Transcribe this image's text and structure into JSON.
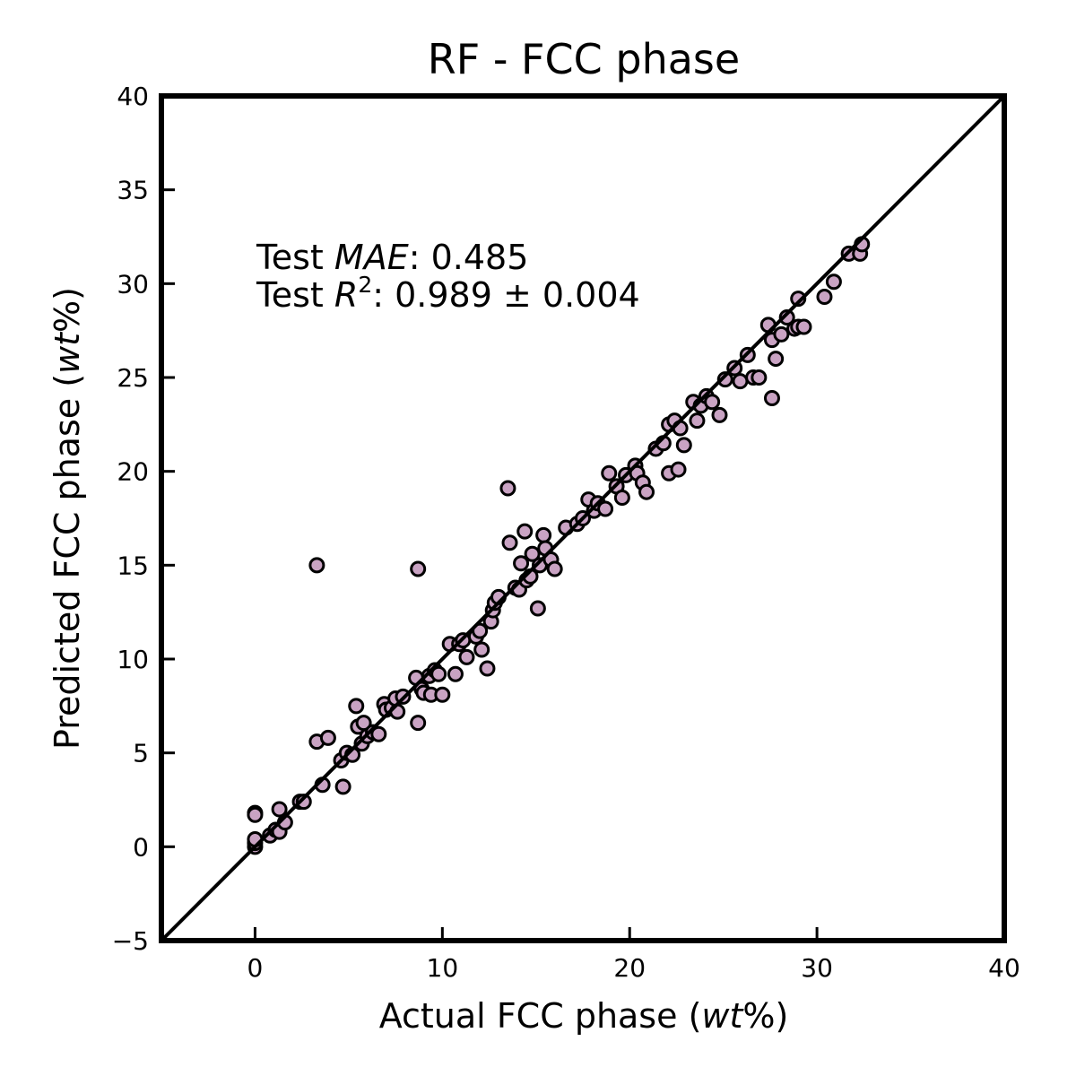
{
  "chart_data": {
    "type": "scatter",
    "title": "RF - FCC phase",
    "xlabel_prefix": "Actual FCC phase (",
    "ylabel_prefix": "Predicted FCC phase (",
    "unit": "wt",
    "unit_suffix": "%)",
    "xlim": [
      -5,
      40
    ],
    "ylim": [
      -5,
      40
    ],
    "x_ticks": [
      0,
      10,
      20,
      30,
      40
    ],
    "y_ticks": [
      -5,
      0,
      5,
      10,
      15,
      20,
      25,
      30,
      35,
      40
    ],
    "identity_line": true,
    "grid": false,
    "annotation": {
      "mae_prefix": "Test ",
      "mae_name": "MAE",
      "mae_value": ": 0.485",
      "r2_prefix": "Test ",
      "r2_name": "R",
      "r2_sup": "2",
      "r2_value": ": 0.989 ± 0.004"
    },
    "marker_color": "#c9a3c3",
    "points": [
      [
        0,
        0
      ],
      [
        0,
        0.2
      ],
      [
        0,
        0.4
      ],
      [
        0,
        1.8
      ],
      [
        0,
        1.7
      ],
      [
        0.8,
        0.6
      ],
      [
        1.1,
        0.9
      ],
      [
        1.3,
        0.8
      ],
      [
        1.3,
        2.0
      ],
      [
        1.6,
        1.3
      ],
      [
        2.4,
        2.4
      ],
      [
        2.6,
        2.4
      ],
      [
        3.3,
        15.0
      ],
      [
        3.3,
        5.6
      ],
      [
        3.6,
        3.3
      ],
      [
        3.9,
        5.8
      ],
      [
        4.6,
        4.6
      ],
      [
        4.7,
        3.2
      ],
      [
        4.9,
        5.0
      ],
      [
        5.2,
        4.9
      ],
      [
        5.4,
        7.5
      ],
      [
        5.5,
        6.4
      ],
      [
        5.7,
        5.5
      ],
      [
        5.8,
        6.6
      ],
      [
        6.0,
        5.9
      ],
      [
        6.3,
        6.1
      ],
      [
        6.6,
        6.0
      ],
      [
        6.9,
        7.6
      ],
      [
        7.0,
        7.3
      ],
      [
        7.3,
        7.4
      ],
      [
        7.5,
        7.9
      ],
      [
        7.6,
        7.2
      ],
      [
        7.9,
        8.0
      ],
      [
        8.7,
        14.8
      ],
      [
        8.7,
        6.6
      ],
      [
        8.6,
        9.0
      ],
      [
        8.9,
        8.4
      ],
      [
        9.0,
        8.2
      ],
      [
        9.3,
        9.1
      ],
      [
        9.4,
        8.1
      ],
      [
        9.6,
        9.4
      ],
      [
        9.8,
        9.2
      ],
      [
        10.0,
        8.1
      ],
      [
        10.4,
        10.8
      ],
      [
        10.7,
        9.2
      ],
      [
        10.9,
        10.8
      ],
      [
        11.1,
        11.0
      ],
      [
        11.3,
        10.1
      ],
      [
        11.8,
        11.2
      ],
      [
        12.0,
        11.5
      ],
      [
        12.1,
        10.5
      ],
      [
        12.4,
        9.5
      ],
      [
        12.6,
        12.0
      ],
      [
        12.7,
        12.6
      ],
      [
        12.8,
        13.0
      ],
      [
        13.0,
        13.3
      ],
      [
        13.5,
        19.1
      ],
      [
        13.6,
        16.2
      ],
      [
        13.9,
        13.8
      ],
      [
        14.1,
        13.7
      ],
      [
        14.2,
        15.1
      ],
      [
        14.4,
        16.8
      ],
      [
        14.5,
        14.2
      ],
      [
        14.7,
        14.4
      ],
      [
        14.8,
        15.6
      ],
      [
        15.1,
        12.7
      ],
      [
        15.2,
        15.0
      ],
      [
        15.4,
        16.6
      ],
      [
        15.5,
        15.9
      ],
      [
        15.8,
        15.3
      ],
      [
        16.0,
        14.8
      ],
      [
        16.6,
        17.0
      ],
      [
        17.2,
        17.2
      ],
      [
        17.5,
        17.5
      ],
      [
        17.8,
        18.5
      ],
      [
        18.1,
        17.9
      ],
      [
        18.3,
        18.3
      ],
      [
        18.7,
        18.0
      ],
      [
        18.9,
        19.9
      ],
      [
        19.3,
        19.2
      ],
      [
        19.6,
        18.6
      ],
      [
        19.8,
        19.8
      ],
      [
        20.3,
        20.3
      ],
      [
        20.4,
        19.9
      ],
      [
        20.7,
        19.4
      ],
      [
        20.9,
        18.9
      ],
      [
        21.4,
        21.2
      ],
      [
        21.8,
        21.5
      ],
      [
        22.1,
        22.5
      ],
      [
        22.1,
        19.9
      ],
      [
        22.4,
        22.7
      ],
      [
        22.6,
        20.1
      ],
      [
        22.7,
        22.3
      ],
      [
        22.9,
        21.4
      ],
      [
        23.4,
        23.7
      ],
      [
        23.6,
        22.7
      ],
      [
        23.8,
        23.5
      ],
      [
        24.1,
        24.0
      ],
      [
        24.4,
        23.7
      ],
      [
        24.8,
        23.0
      ],
      [
        25.1,
        24.9
      ],
      [
        25.6,
        25.5
      ],
      [
        25.9,
        24.8
      ],
      [
        26.3,
        26.2
      ],
      [
        26.6,
        25.0
      ],
      [
        26.9,
        25.0
      ],
      [
        27.4,
        27.8
      ],
      [
        27.6,
        27.0
      ],
      [
        27.6,
        23.9
      ],
      [
        27.8,
        26.0
      ],
      [
        28.1,
        27.3
      ],
      [
        28.4,
        28.2
      ],
      [
        28.8,
        27.6
      ],
      [
        29.0,
        27.7
      ],
      [
        29.0,
        29.2
      ],
      [
        29.3,
        27.7
      ],
      [
        30.4,
        29.3
      ],
      [
        30.9,
        30.1
      ],
      [
        31.7,
        31.6
      ],
      [
        32.3,
        31.6
      ],
      [
        32.4,
        32.1
      ]
    ]
  }
}
